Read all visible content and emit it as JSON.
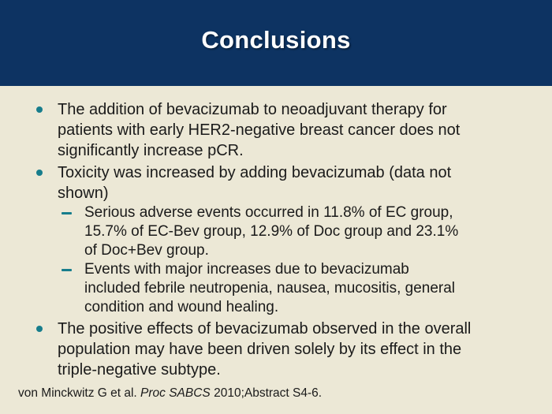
{
  "slide": {
    "title": "Conclusions",
    "bullets": [
      {
        "level": 1,
        "text": "The addition of bevacizumab to neoadjuvant therapy for\npatients with early HER2-negative breast cancer does not\nsignificantly increase pCR."
      },
      {
        "level": 1,
        "text": "Toxicity was increased by adding bevacizumab (data not\nshown)"
      },
      {
        "level": 2,
        "text": "Serious adverse events occurred in 11.8% of EC group,\n15.7% of EC-Bev group, 12.9% of Doc group and 23.1%\nof Doc+Bev group."
      },
      {
        "level": 2,
        "text": "Events with major increases due to bevacizumab\nincluded febrile neutropenia, nausea, mucositis, general\ncondition and wound healing."
      },
      {
        "level": 1,
        "text": "The positive effects of bevacizumab observed in the overall\npopulation may have been driven solely by its effect in the\ntriple-negative subtype."
      }
    ],
    "citation": {
      "prefix": "von Minckwitz G et al. ",
      "italic": "Proc SABCS",
      "suffix": " 2010;Abstract S4-6."
    },
    "colors": {
      "header_bg": "#0d3362",
      "body_bg": "#ece8d6",
      "bullet": "#177d8c",
      "text": "#1a1a1a",
      "title_text": "#ffffff"
    }
  }
}
